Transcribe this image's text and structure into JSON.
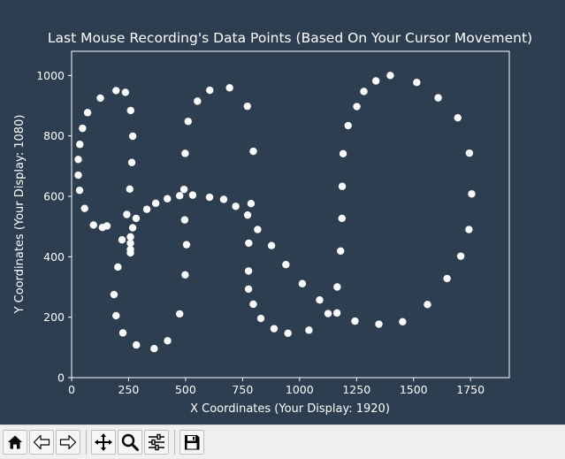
{
  "chart_data": {
    "type": "scatter",
    "title": "Last Mouse Recording's Data Points (Based On Your Cursor Movement)",
    "xlabel": "X Coordinates (Your Display: 1920)",
    "ylabel": "Y Coordinates (Your Display: 1080)",
    "xlim": [
      0,
      1920
    ],
    "ylim": [
      0,
      1080
    ],
    "xticks": [
      0,
      250,
      500,
      750,
      1000,
      1250,
      1500,
      1750
    ],
    "yticks": [
      0,
      200,
      400,
      600,
      800,
      1000
    ],
    "grid": false,
    "colors": {
      "background": "#2d3e50",
      "points": "#ffffff",
      "text": "#ffffff"
    },
    "points": [
      [
        362,
        96
      ],
      [
        421,
        122
      ],
      [
        284,
        108
      ],
      [
        225,
        148
      ],
      [
        195,
        205
      ],
      [
        186,
        275
      ],
      [
        203,
        366
      ],
      [
        221,
        456
      ],
      [
        242,
        540
      ],
      [
        255,
        624
      ],
      [
        264,
        712
      ],
      [
        268,
        799
      ],
      [
        259,
        884
      ],
      [
        236,
        944
      ],
      [
        195,
        950
      ],
      [
        126,
        925
      ],
      [
        70,
        877
      ],
      [
        48,
        825
      ],
      [
        36,
        772
      ],
      [
        29,
        722
      ],
      [
        29,
        670
      ],
      [
        35,
        620
      ],
      [
        57,
        560
      ],
      [
        96,
        505
      ],
      [
        135,
        497
      ],
      [
        155,
        502
      ],
      [
        258,
        466
      ],
      [
        258,
        445
      ],
      [
        258,
        424
      ],
      [
        258,
        413
      ],
      [
        268,
        496
      ],
      [
        283,
        527
      ],
      [
        330,
        557
      ],
      [
        369,
        577
      ],
      [
        420,
        592
      ],
      [
        474,
        602
      ],
      [
        493,
        623
      ],
      [
        531,
        604
      ],
      [
        605,
        597
      ],
      [
        667,
        590
      ],
      [
        720,
        567
      ],
      [
        772,
        538
      ],
      [
        787,
        576
      ],
      [
        816,
        490
      ],
      [
        777,
        445
      ],
      [
        877,
        437
      ],
      [
        940,
        374
      ],
      [
        776,
        353
      ],
      [
        776,
        293
      ],
      [
        797,
        243
      ],
      [
        830,
        196
      ],
      [
        888,
        162
      ],
      [
        949,
        147
      ],
      [
        1041,
        157
      ],
      [
        1012,
        311
      ],
      [
        1088,
        257
      ],
      [
        1125,
        212
      ],
      [
        1164,
        214
      ],
      [
        1165,
        300
      ],
      [
        1180,
        419
      ],
      [
        1186,
        527
      ],
      [
        1187,
        633
      ],
      [
        1191,
        741
      ],
      [
        1213,
        834
      ],
      [
        1251,
        897
      ],
      [
        1282,
        947
      ],
      [
        1335,
        982
      ],
      [
        1398,
        1000
      ],
      [
        1514,
        977
      ],
      [
        1608,
        926
      ],
      [
        1694,
        860
      ],
      [
        1745,
        743
      ],
      [
        1755,
        608
      ],
      [
        1743,
        490
      ],
      [
        1707,
        402
      ],
      [
        1647,
        328
      ],
      [
        1561,
        242
      ],
      [
        1452,
        185
      ],
      [
        1348,
        177
      ],
      [
        1243,
        187
      ],
      [
        498,
        742
      ],
      [
        511,
        848
      ],
      [
        552,
        915
      ],
      [
        606,
        951
      ],
      [
        693,
        959
      ],
      [
        771,
        898
      ],
      [
        797,
        749
      ],
      [
        496,
        522
      ],
      [
        504,
        440
      ],
      [
        498,
        340
      ],
      [
        474,
        211
      ]
    ]
  },
  "toolbar": {
    "buttons": [
      {
        "icon": "home-icon",
        "name": "home-button"
      },
      {
        "icon": "back-arrow-icon",
        "name": "back-button"
      },
      {
        "icon": "forward-arrow-icon",
        "name": "forward-button"
      },
      {
        "icon": "pan-move-icon",
        "name": "pan-button"
      },
      {
        "icon": "zoom-magnifier-icon",
        "name": "zoom-button"
      },
      {
        "icon": "configure-subplots-icon",
        "name": "subplots-button"
      },
      {
        "icon": "save-disk-icon",
        "name": "save-button"
      }
    ]
  }
}
